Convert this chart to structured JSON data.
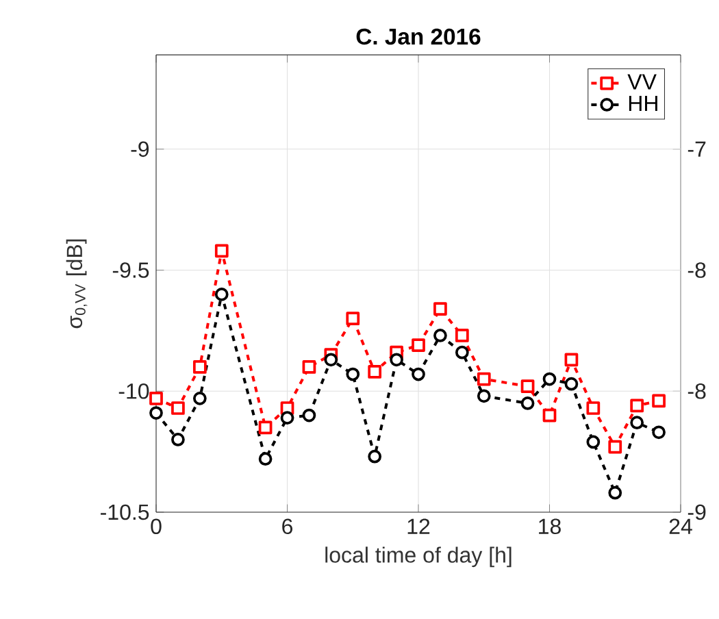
{
  "chart_data": {
    "type": "line",
    "title": "C. Jan 2016",
    "xlabel": "local time of day [h]",
    "ylabel": "σ$_{0,VV}$ [dB]",
    "xlim": [
      0,
      24
    ],
    "xticks": [
      0,
      6,
      12,
      18,
      24
    ],
    "ylim": [
      -10.5,
      -8.61
    ],
    "yticks": [
      -10.5,
      -10,
      -9.5,
      -9
    ],
    "y2lim": [
      -9,
      -7.11
    ],
    "y2ticks": [
      {
        "value": -9,
        "label": "-9"
      },
      {
        "value": -8.5,
        "label": "-8"
      },
      {
        "value": -8,
        "label": "-8"
      },
      {
        "value": -7.5,
        "label": "-7"
      }
    ],
    "grid": true,
    "legend": "top right",
    "line_style": "dashed",
    "series": [
      {
        "name": "VV",
        "color": "#ff0000",
        "marker": "square",
        "x": [
          0,
          1,
          2,
          3,
          5,
          6,
          7,
          8,
          9,
          10,
          11,
          12,
          13,
          14,
          15,
          17,
          18,
          19,
          20,
          21,
          22,
          23
        ],
        "values": [
          -10.03,
          -10.07,
          -9.9,
          -9.42,
          -10.15,
          -10.07,
          -9.9,
          -9.85,
          -9.7,
          -9.92,
          -9.84,
          -9.81,
          -9.66,
          -9.77,
          -9.95,
          -9.98,
          -10.1,
          -9.87,
          -10.07,
          -10.23,
          -10.06,
          -10.04
        ]
      },
      {
        "name": "HH",
        "color": "#000000",
        "marker": "circle",
        "x": [
          0,
          1,
          2,
          3,
          5,
          6,
          7,
          8,
          9,
          10,
          11,
          12,
          13,
          14,
          15,
          17,
          18,
          19,
          20,
          21,
          22,
          23
        ],
        "values": [
          -10.09,
          -10.2,
          -10.03,
          -9.6,
          -10.28,
          -10.11,
          -10.1,
          -9.87,
          -9.93,
          -10.27,
          -9.87,
          -9.93,
          -9.77,
          -9.84,
          -10.02,
          -10.05,
          -9.95,
          -9.97,
          -10.21,
          -10.42,
          -10.13,
          -10.17
        ]
      }
    ]
  }
}
